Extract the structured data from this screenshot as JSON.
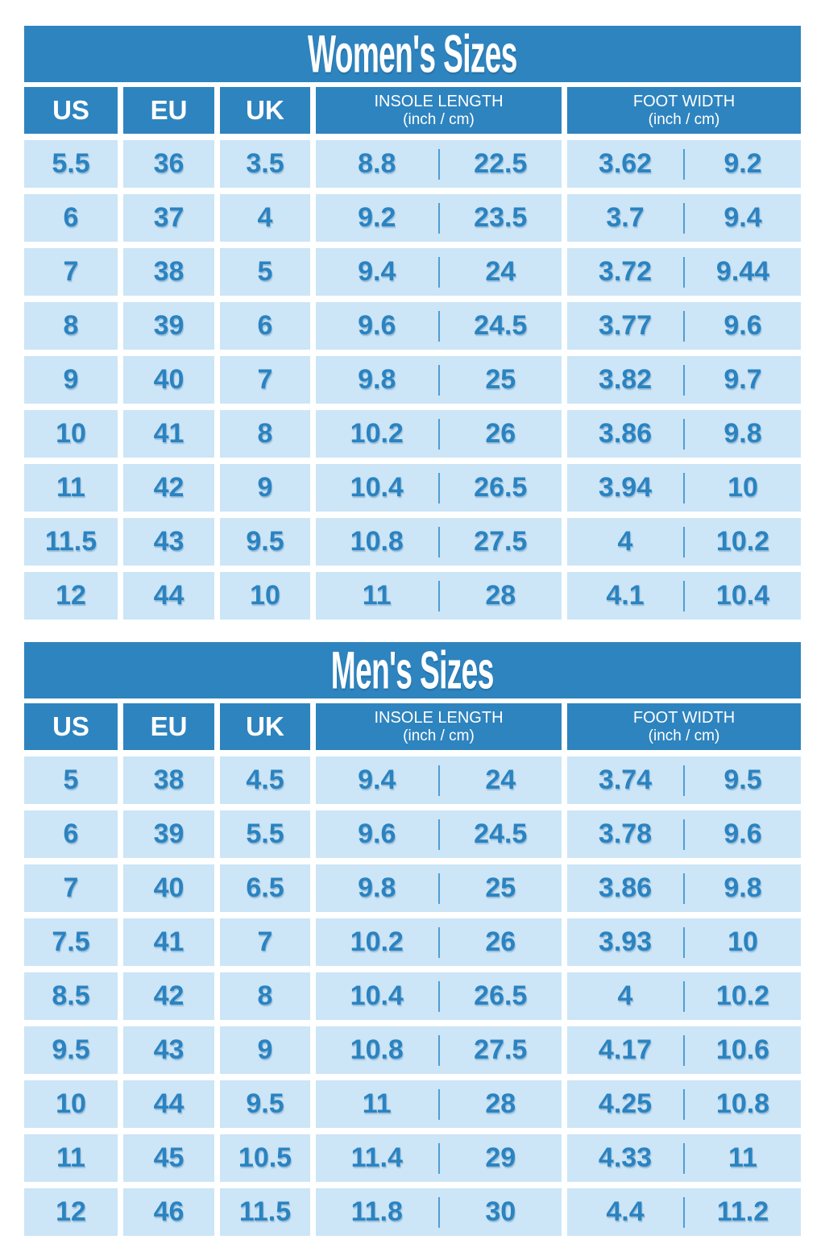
{
  "colors": {
    "primary_blue": "#2E84BF",
    "light_blue": "#CCE5F7",
    "text_blue": "#2B83C0",
    "divider_blue": "#4D9FD3",
    "page_bg": "#FFFFFF"
  },
  "women": {
    "title": "Women's Sizes",
    "headers": {
      "us": "US",
      "eu": "EU",
      "uk": "UK",
      "insole": "INSOLE LENGTH",
      "insole_units": "(inch / cm)",
      "width": "FOOT WIDTH",
      "width_units": "(inch / cm)"
    },
    "rows": [
      {
        "us": "5.5",
        "eu": "36",
        "uk": "3.5",
        "insole_in": "8.8",
        "insole_cm": "22.5",
        "width_in": "3.62",
        "width_cm": "9.2"
      },
      {
        "us": "6",
        "eu": "37",
        "uk": "4",
        "insole_in": "9.2",
        "insole_cm": "23.5",
        "width_in": "3.7",
        "width_cm": "9.4"
      },
      {
        "us": "7",
        "eu": "38",
        "uk": "5",
        "insole_in": "9.4",
        "insole_cm": "24",
        "width_in": "3.72",
        "width_cm": "9.44"
      },
      {
        "us": "8",
        "eu": "39",
        "uk": "6",
        "insole_in": "9.6",
        "insole_cm": "24.5",
        "width_in": "3.77",
        "width_cm": "9.6"
      },
      {
        "us": "9",
        "eu": "40",
        "uk": "7",
        "insole_in": "9.8",
        "insole_cm": "25",
        "width_in": "3.82",
        "width_cm": "9.7"
      },
      {
        "us": "10",
        "eu": "41",
        "uk": "8",
        "insole_in": "10.2",
        "insole_cm": "26",
        "width_in": "3.86",
        "width_cm": "9.8"
      },
      {
        "us": "11",
        "eu": "42",
        "uk": "9",
        "insole_in": "10.4",
        "insole_cm": "26.5",
        "width_in": "3.94",
        "width_cm": "10"
      },
      {
        "us": "11.5",
        "eu": "43",
        "uk": "9.5",
        "insole_in": "10.8",
        "insole_cm": "27.5",
        "width_in": "4",
        "width_cm": "10.2"
      },
      {
        "us": "12",
        "eu": "44",
        "uk": "10",
        "insole_in": "11",
        "insole_cm": "28",
        "width_in": "4.1",
        "width_cm": "10.4"
      }
    ]
  },
  "men": {
    "title": "Men's Sizes",
    "headers": {
      "us": "US",
      "eu": "EU",
      "uk": "UK",
      "insole": "INSOLE LENGTH",
      "insole_units": "(inch / cm)",
      "width": "FOOT WIDTH",
      "width_units": "(inch / cm)"
    },
    "rows": [
      {
        "us": "5",
        "eu": "38",
        "uk": "4.5",
        "insole_in": "9.4",
        "insole_cm": "24",
        "width_in": "3.74",
        "width_cm": "9.5"
      },
      {
        "us": "6",
        "eu": "39",
        "uk": "5.5",
        "insole_in": "9.6",
        "insole_cm": "24.5",
        "width_in": "3.78",
        "width_cm": "9.6"
      },
      {
        "us": "7",
        "eu": "40",
        "uk": "6.5",
        "insole_in": "9.8",
        "insole_cm": "25",
        "width_in": "3.86",
        "width_cm": "9.8"
      },
      {
        "us": "7.5",
        "eu": "41",
        "uk": "7",
        "insole_in": "10.2",
        "insole_cm": "26",
        "width_in": "3.93",
        "width_cm": "10"
      },
      {
        "us": "8.5",
        "eu": "42",
        "uk": "8",
        "insole_in": "10.4",
        "insole_cm": "26.5",
        "width_in": "4",
        "width_cm": "10.2"
      },
      {
        "us": "9.5",
        "eu": "43",
        "uk": "9",
        "insole_in": "10.8",
        "insole_cm": "27.5",
        "width_in": "4.17",
        "width_cm": "10.6"
      },
      {
        "us": "10",
        "eu": "44",
        "uk": "9.5",
        "insole_in": "11",
        "insole_cm": "28",
        "width_in": "4.25",
        "width_cm": "10.8"
      },
      {
        "us": "11",
        "eu": "45",
        "uk": "10.5",
        "insole_in": "11.4",
        "insole_cm": "29",
        "width_in": "4.33",
        "width_cm": "11"
      },
      {
        "us": "12",
        "eu": "46",
        "uk": "11.5",
        "insole_in": "11.8",
        "insole_cm": "30",
        "width_in": "4.4",
        "width_cm": "11.2"
      }
    ]
  }
}
